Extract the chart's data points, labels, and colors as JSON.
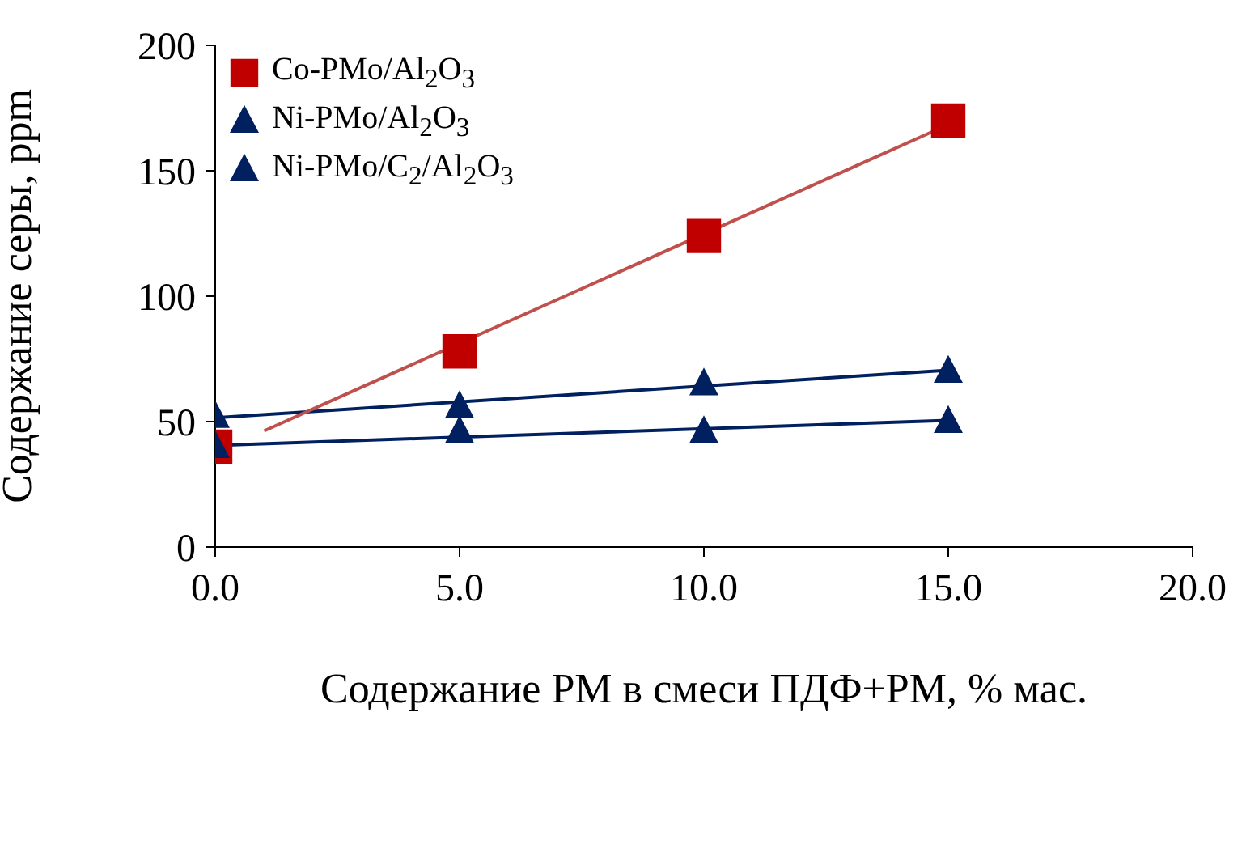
{
  "chart_data": {
    "type": "scatter",
    "xlabel": "Содержание РМ в смеси ПДФ+РМ, % мас.",
    "ylabel": "Содержание серы, ppm",
    "xlim": [
      0,
      20
    ],
    "xticks": [
      {
        "value": 0,
        "label": "0.0"
      },
      {
        "value": 5,
        "label": "5.0"
      },
      {
        "value": 10,
        "label": "10.0"
      },
      {
        "value": 15,
        "label": "15.0"
      },
      {
        "value": 20,
        "label": "20.0"
      }
    ],
    "ylim": [
      0,
      200
    ],
    "yticks": [
      0,
      50,
      100,
      150,
      200
    ],
    "grid": false,
    "legend": "top left",
    "series": [
      {
        "name": "Co-PMo/Al$_{2}$O$_{3}$",
        "color": "#c00000",
        "marker": "square",
        "x": [
          0,
          5,
          10,
          15
        ],
        "values": [
          40,
          78,
          124,
          170
        ]
      },
      {
        "name": "Ni-PMo/Al$_{2}$O$_{3}$",
        "color": "#002060",
        "marker": "triangle",
        "x": [
          0,
          5,
          10,
          15
        ],
        "values": [
          52,
          56,
          65,
          70
        ]
      },
      {
        "name": "Ni-PMo/C$_{2}$/Al$_{2}$O$_{3}$",
        "color": "#002060",
        "marker": "triangle",
        "x": [
          0,
          5,
          10,
          15
        ],
        "values": [
          40,
          46,
          46,
          50
        ]
      },
      {
        "type": "line",
        "color": "#c0504d",
        "x": [
          1,
          15
        ],
        "values": [
          46.3,
          168.4
        ]
      },
      {
        "type": "line",
        "color": "#002060",
        "x": [
          0,
          15
        ],
        "values": [
          51.5,
          70.5
        ]
      },
      {
        "type": "line",
        "color": "#002060",
        "x": [
          0,
          15
        ],
        "values": [
          40.5,
          50.5
        ]
      }
    ]
  }
}
